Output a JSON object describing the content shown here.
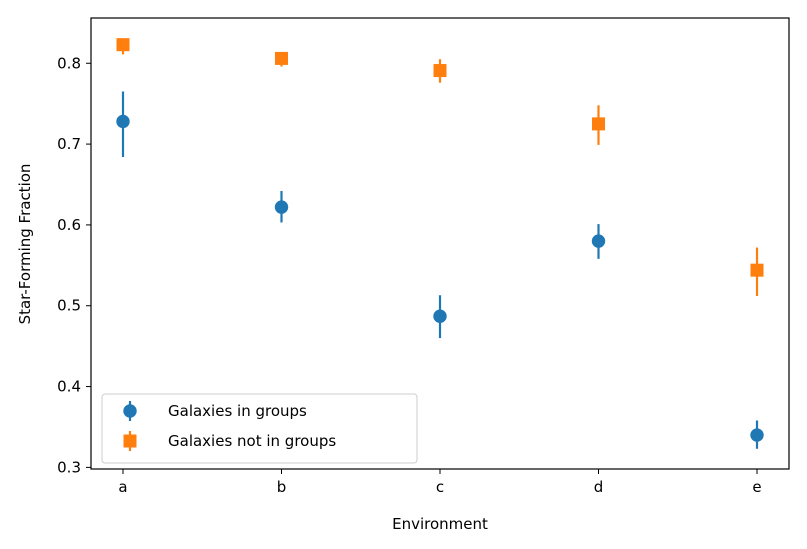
{
  "chart_data": {
    "type": "scatter",
    "title": "",
    "xlabel": "Environment",
    "ylabel": "Star-Forming Fraction",
    "categories": [
      "a",
      "b",
      "c",
      "d",
      "e"
    ],
    "ylim": [
      0.298,
      0.856
    ],
    "yticks": [
      "0.3",
      "0.4",
      "0.5",
      "0.6",
      "0.7",
      "0.8"
    ],
    "grid": false,
    "legend_position": "lower-left",
    "series": [
      {
        "name": "Galaxies in groups",
        "marker": "circle",
        "color": "#1f77b4",
        "values": [
          0.728,
          0.622,
          0.487,
          0.58,
          0.34
        ],
        "err_low": [
          0.684,
          0.603,
          0.46,
          0.558,
          0.323
        ],
        "err_high": [
          0.765,
          0.642,
          0.513,
          0.601,
          0.358
        ]
      },
      {
        "name": "Galaxies not in groups",
        "marker": "square",
        "color": "#ff7f0e",
        "values": [
          0.823,
          0.806,
          0.791,
          0.725,
          0.544
        ],
        "err_low": [
          0.811,
          0.796,
          0.776,
          0.699,
          0.512
        ],
        "err_high": [
          0.83,
          0.814,
          0.805,
          0.748,
          0.572
        ]
      }
    ]
  }
}
